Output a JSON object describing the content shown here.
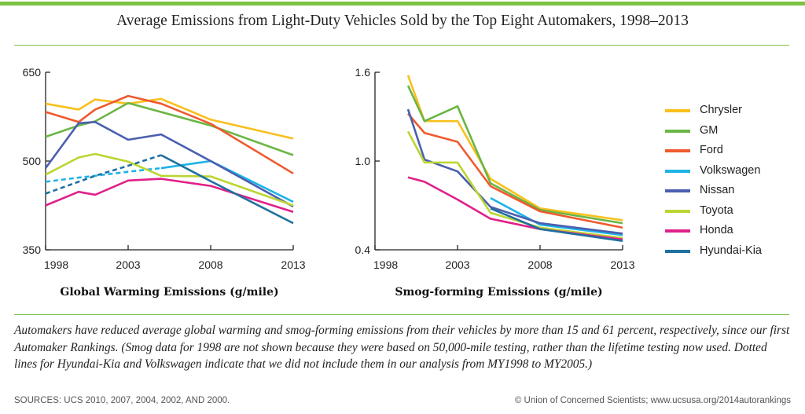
{
  "title": "Average Emissions from Light-Duty Vehicles Sold by the Top Eight Automakers, 1998–2013",
  "caption": "Automakers have reduced average global warming and smog-forming emissions from their vehicles by more than 15 and 61 percent, respectively, since our first Automaker Rankings. (Smog data for 1998 are not shown because they were based on 50,000-mile testing, rather than the lifetime testing now used. Dotted lines for Hyundai-Kia and Volkswagen indicate that we did not include them in our analysis from MY1998 to MY2005.)",
  "sources": "SOURCES: UCS 2010, 2007, 2004, 2002, AND 2000.",
  "credit": "© Union of Concerned Scientists; www.ucsusa.org/2014autorankings",
  "colors": {
    "accent": "#7dc242",
    "Chrysler": "#f9c01c",
    "GM": "#6bb644",
    "Ford": "#ef5a2e",
    "Volkswagen": "#1db3e6",
    "Nissan": "#4a5fb0",
    "Toyota": "#bcd532",
    "Honda": "#e0218a",
    "Hyundai-Kia": "#1f6fa0"
  },
  "legend": [
    "Chrysler",
    "GM",
    "Ford",
    "Volkswagen",
    "Nissan",
    "Toyota",
    "Honda",
    "Hyundai-Kia"
  ],
  "chart_data": [
    {
      "type": "line",
      "title": "Global Warming Emissions (g/mile)",
      "xlim": [
        1998,
        2013
      ],
      "ylim": [
        350,
        650
      ],
      "xticks": [
        "1998",
        "2003",
        "2008",
        "2013"
      ],
      "yticks": [
        "650",
        "500",
        "350"
      ],
      "series": [
        {
          "name": "Chrysler",
          "points": [
            [
              1998,
              597
            ],
            [
              2000,
              587
            ],
            [
              2001,
              604
            ],
            [
              2003,
              597
            ],
            [
              2005,
              605
            ],
            [
              2008,
              570
            ],
            [
              2013,
              538
            ]
          ]
        },
        {
          "name": "GM",
          "points": [
            [
              1998,
              541
            ],
            [
              2000,
              560
            ],
            [
              2001,
              567
            ],
            [
              2003,
              598
            ],
            [
              2008,
              560
            ],
            [
              2013,
              510
            ]
          ]
        },
        {
          "name": "Ford",
          "points": [
            [
              1998,
              583
            ],
            [
              2000,
              566
            ],
            [
              2001,
              587
            ],
            [
              2003,
              610
            ],
            [
              2005,
              597
            ],
            [
              2008,
              563
            ],
            [
              2013,
              479
            ]
          ]
        },
        {
          "name": "Volkswagen",
          "points": [
            [
              1998,
              465
            ],
            [
              2000,
              472
            ],
            [
              2001,
              475
            ],
            [
              2003,
              482
            ],
            [
              2005,
              488
            ],
            [
              2008,
              500
            ],
            [
              2013,
              431
            ]
          ],
          "dashed_until": 2005
        },
        {
          "name": "Nissan",
          "points": [
            [
              1998,
              488
            ],
            [
              2000,
              564
            ],
            [
              2001,
              566
            ],
            [
              2003,
              536
            ],
            [
              2005,
              545
            ],
            [
              2008,
              500
            ],
            [
              2013,
              423
            ]
          ]
        },
        {
          "name": "Toyota",
          "points": [
            [
              1998,
              477
            ],
            [
              2000,
              506
            ],
            [
              2001,
              512
            ],
            [
              2003,
              499
            ],
            [
              2005,
              475
            ],
            [
              2008,
              474
            ],
            [
              2013,
              425
            ]
          ]
        },
        {
          "name": "Honda",
          "points": [
            [
              1998,
              425
            ],
            [
              2000,
              448
            ],
            [
              2001,
              443
            ],
            [
              2003,
              467
            ],
            [
              2005,
              470
            ],
            [
              2008,
              458
            ],
            [
              2013,
              414
            ]
          ]
        },
        {
          "name": "Hyundai-Kia",
          "points": [
            [
              1998,
              445
            ],
            [
              2001,
              475
            ],
            [
              2003,
              492
            ],
            [
              2005,
              510
            ],
            [
              2008,
              466
            ],
            [
              2013,
              395
            ]
          ],
          "dashed_until": 2005
        }
      ]
    },
    {
      "type": "line",
      "title": "Smog-forming Emissions (g/mile)",
      "xlim": [
        1998,
        2013
      ],
      "ylim": [
        0.4,
        1.6
      ],
      "xticks": [
        "1998",
        "2003",
        "2008",
        "2013"
      ],
      "yticks": [
        "1.6",
        "1.0",
        "0.4"
      ],
      "series": [
        {
          "name": "Chrysler",
          "points": [
            [
              2000,
              1.58
            ],
            [
              2001,
              1.27
            ],
            [
              2003,
              1.27
            ],
            [
              2005,
              0.88
            ],
            [
              2008,
              0.68
            ],
            [
              2013,
              0.6
            ]
          ]
        },
        {
          "name": "GM",
          "points": [
            [
              2000,
              1.51
            ],
            [
              2001,
              1.27
            ],
            [
              2003,
              1.37
            ],
            [
              2005,
              0.85
            ],
            [
              2008,
              0.67
            ],
            [
              2013,
              0.58
            ]
          ]
        },
        {
          "name": "Ford",
          "points": [
            [
              2000,
              1.32
            ],
            [
              2001,
              1.19
            ],
            [
              2003,
              1.13
            ],
            [
              2005,
              0.83
            ],
            [
              2008,
              0.66
            ],
            [
              2013,
              0.55
            ]
          ]
        },
        {
          "name": "Volkswagen",
          "points": [
            [
              2005,
              0.75
            ],
            [
              2008,
              0.57
            ],
            [
              2013,
              0.5
            ]
          ]
        },
        {
          "name": "Nissan",
          "points": [
            [
              2000,
              1.35
            ],
            [
              2001,
              1.01
            ],
            [
              2003,
              0.93
            ],
            [
              2005,
              0.69
            ],
            [
              2008,
              0.58
            ],
            [
              2013,
              0.51
            ]
          ]
        },
        {
          "name": "Toyota",
          "points": [
            [
              2000,
              1.2
            ],
            [
              2001,
              0.99
            ],
            [
              2003,
              0.99
            ],
            [
              2005,
              0.65
            ],
            [
              2008,
              0.55
            ],
            [
              2013,
              0.48
            ]
          ]
        },
        {
          "name": "Honda",
          "points": [
            [
              2000,
              0.89
            ],
            [
              2001,
              0.86
            ],
            [
              2003,
              0.74
            ],
            [
              2005,
              0.61
            ],
            [
              2008,
              0.54
            ],
            [
              2013,
              0.47
            ]
          ]
        },
        {
          "name": "Hyundai-Kia",
          "points": [
            [
              2005,
              0.68
            ],
            [
              2008,
              0.54
            ],
            [
              2013,
              0.46
            ]
          ]
        }
      ]
    }
  ]
}
